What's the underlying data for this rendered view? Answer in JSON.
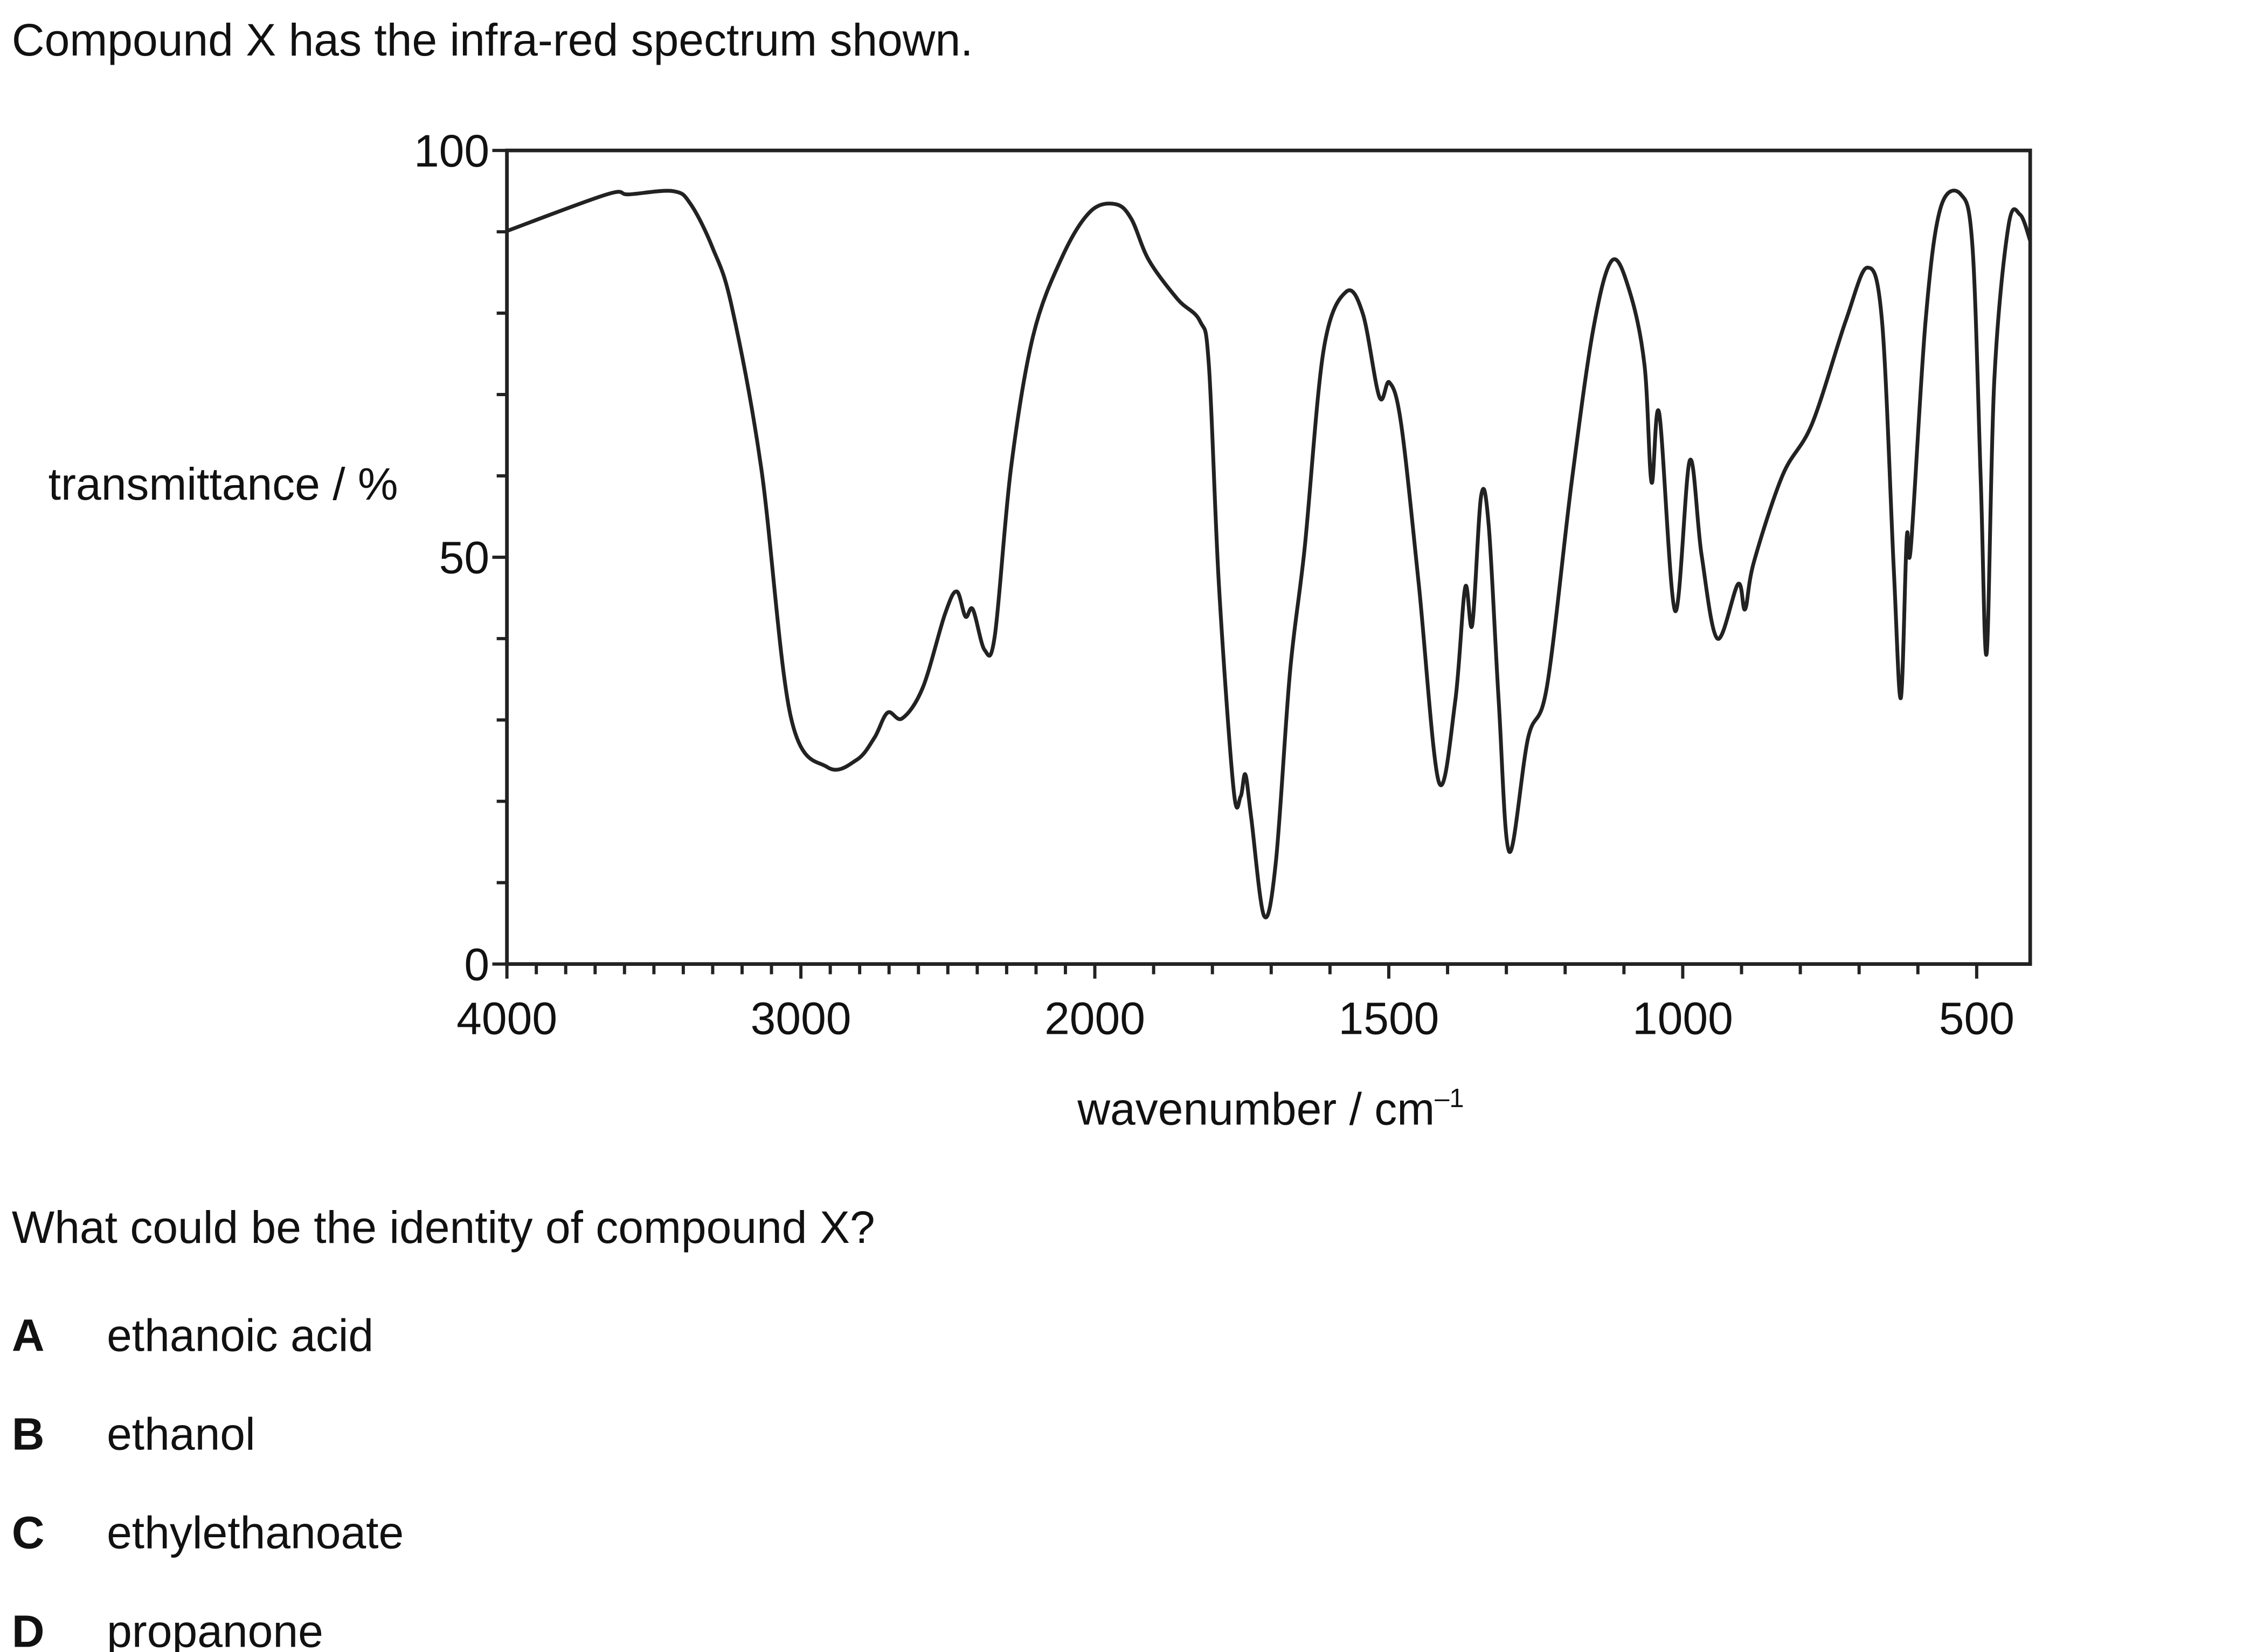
{
  "question": "Compound X has the infra-red spectrum shown.",
  "chart_data": {
    "type": "line",
    "y_label": "transmittance / %",
    "x_label": {
      "text": "wavenumber / cm",
      "sup": "–1"
    },
    "xlim": [
      4000,
      409
    ],
    "ylim": [
      0,
      100
    ],
    "xticks": [
      4000,
      3000,
      2000,
      1500,
      1000,
      500
    ],
    "xminorticks": [
      3900,
      3800,
      3700,
      3600,
      3500,
      3400,
      3300,
      3200,
      3100,
      2900,
      2800,
      2700,
      2600,
      2500,
      2400,
      2300,
      2200,
      2100,
      1900,
      1800,
      1700,
      1600,
      1400,
      1300,
      1200,
      1100,
      900,
      800,
      700,
      600
    ],
    "yticks": [
      0,
      50,
      100
    ],
    "yminorticks": [
      10,
      20,
      30,
      40,
      60,
      70,
      80,
      90
    ],
    "series": [
      {
        "name": "spectrum",
        "color": "#222222",
        "x": [
          4000,
          3660,
          3585,
          3435,
          3375,
          3300,
          3235,
          3135,
          3035,
          2910,
          2810,
          2750,
          2705,
          2655,
          2585,
          2510,
          2470,
          2440,
          2415,
          2375,
          2340,
          2285,
          2210,
          2110,
          2015,
          1965,
          1938,
          1908,
          1859,
          1821,
          1806,
          1789,
          1764,
          1752,
          1744,
          1734,
          1712,
          1692,
          1668,
          1643,
          1611,
          1573,
          1544,
          1516,
          1499,
          1479,
          1449,
          1415,
          1387,
          1370,
          1358,
          1343,
          1330,
          1313,
          1295,
          1263,
          1231,
          1189,
          1152,
          1120,
          1090,
          1065,
          1053,
          1040,
          1013,
          988,
          968,
          941,
          906,
          894,
          879,
          830,
          780,
          723,
          686,
          661,
          641,
          629,
          619,
          612,
          587,
          562,
          527,
          507,
          493,
          483,
          470,
          446,
          426,
          409
        ],
        "values": [
          90.1,
          94.6,
          94.6,
          95,
          93.4,
          88,
          80.8,
          61,
          30.5,
          24.2,
          25.1,
          27.8,
          30.9,
          30.2,
          34,
          43,
          45.8,
          42.7,
          43.6,
          38.6,
          40.4,
          61,
          77.2,
          87,
          92.5,
          93.4,
          91.6,
          86.5,
          81.7,
          79,
          73.6,
          46.7,
          21.5,
          20.6,
          23.3,
          18,
          5.9,
          12.6,
          35.9,
          51.2,
          75.4,
          82.6,
          79.9,
          69.7,
          71.5,
          66.4,
          46.7,
          22.4,
          32.3,
          46.3,
          41.7,
          57.5,
          53.9,
          32.3,
          13.8,
          27.8,
          34.1,
          59.2,
          78.1,
          86.5,
          82.6,
          73.6,
          59.2,
          67.7,
          43.4,
          61.9,
          50.3,
          40,
          46.7,
          43.6,
          49.4,
          60.1,
          66.4,
          79,
          85.6,
          79,
          48.5,
          32.7,
          52.4,
          51.2,
          79,
          92.8,
          94.6,
          88,
          59.2,
          38.2,
          71.8,
          90.7,
          92.1,
          88.9
        ]
      }
    ]
  },
  "prompt": "What could be the identity of compound X?",
  "options": [
    {
      "letter": "A",
      "text": "ethanoic acid"
    },
    {
      "letter": "B",
      "text": "ethanol"
    },
    {
      "letter": "C",
      "text": "ethylethanoate"
    },
    {
      "letter": "D",
      "text": "propanone"
    }
  ]
}
